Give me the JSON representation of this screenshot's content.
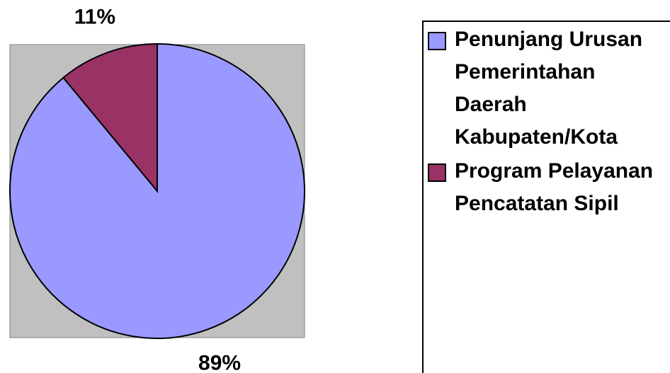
{
  "chart_data": {
    "type": "pie",
    "categories": [
      "Penunjang Urusan Pemerintahan Daerah Kabupaten/Kota",
      "Program Pelayanan Pencatatan Sipil"
    ],
    "values": [
      89,
      11
    ],
    "value_labels": [
      "89%",
      "11%"
    ],
    "colors": [
      "#9999ff",
      "#993366"
    ],
    "legend": "right"
  }
}
